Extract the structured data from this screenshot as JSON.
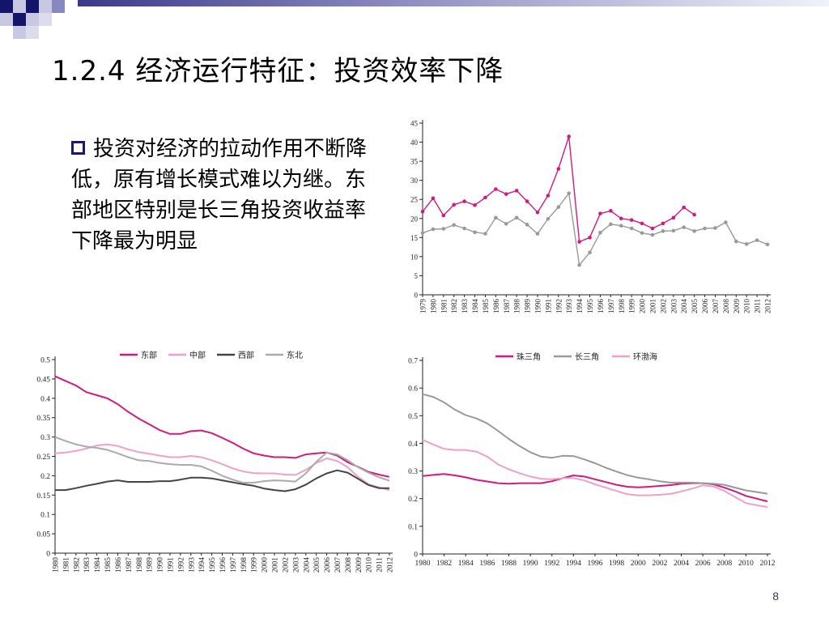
{
  "slide": {
    "title": "1.2.4 经济运行特征：投资效率下降",
    "bullet": "投资对经济的拉动作用不断降低，原有增长模式难以为继。东部地区特别是长三角投资收益率下降最为明显",
    "page_number": "8"
  },
  "colors": {
    "magenta": "#d4197e",
    "gray": "#999999",
    "pink": "#f0a0c8",
    "dark": "#444444",
    "lightgray": "#aaaaaa",
    "accent": "#1a1a6a"
  },
  "chart_data": [
    {
      "type": "line",
      "x": [
        1979,
        1980,
        1981,
        1982,
        1983,
        1984,
        1985,
        1986,
        1987,
        1988,
        1989,
        1990,
        1991,
        1992,
        1993,
        1994,
        1995,
        1996,
        1997,
        1998,
        1999,
        2000,
        2001,
        2002,
        2003,
        2004,
        2005,
        2006,
        2007,
        2008,
        2009,
        2010,
        2011,
        2012
      ],
      "ylim": [
        0,
        45
      ],
      "yticks": [
        0,
        5,
        10,
        15,
        20,
        25,
        30,
        35,
        40,
        45
      ],
      "series": [
        {
          "color": "#d4197e",
          "values": [
            21.8,
            25.3,
            20.8,
            23.6,
            24.5,
            23.5,
            25.5,
            27.7,
            26.4,
            27.3,
            24.5,
            21.6,
            26.0,
            33.0,
            41.5,
            13.9,
            15.0,
            21.3,
            22.0,
            20.0,
            19.6,
            18.7,
            17.4,
            18.7,
            20.2,
            22.9,
            21.0,
            null,
            null,
            null,
            null,
            null,
            null,
            null
          ]
        },
        {
          "color": "#999999",
          "values": [
            16.2,
            17.2,
            17.3,
            18.3,
            17.4,
            16.4,
            16.0,
            20.2,
            18.6,
            20.2,
            18.4,
            16.0,
            19.9,
            23.0,
            26.6,
            7.8,
            11.1,
            16.3,
            18.5,
            18.1,
            17.4,
            16.2,
            15.7,
            16.7,
            16.8,
            17.7,
            16.7,
            17.4,
            17.5,
            19.0,
            14.0,
            13.3,
            14.3,
            13.2
          ]
        }
      ]
    },
    {
      "type": "line",
      "x": [
        1980,
        1981,
        1982,
        1983,
        1984,
        1985,
        1986,
        1987,
        1988,
        1989,
        1990,
        1991,
        1992,
        1993,
        1994,
        1995,
        1996,
        1997,
        1998,
        1999,
        2000,
        2001,
        2002,
        2003,
        2004,
        2005,
        2006,
        2007,
        2008,
        2009,
        2010,
        2011,
        2012
      ],
      "ylim": [
        0,
        0.5
      ],
      "yticks": [
        "0",
        "0.05",
        "0.1",
        "0.15",
        "0.2",
        "0.25",
        "0.3",
        "0.35",
        "0.4",
        "0.45",
        "0.5"
      ],
      "legend": [
        "东部",
        "中部",
        "西部",
        "东北"
      ],
      "series": [
        {
          "name": "东部",
          "color": "#d4197e",
          "values": [
            0.457,
            0.445,
            0.433,
            0.416,
            0.408,
            0.4,
            0.385,
            0.365,
            0.348,
            0.333,
            0.318,
            0.308,
            0.308,
            0.315,
            0.317,
            0.31,
            0.298,
            0.285,
            0.27,
            0.258,
            0.252,
            0.248,
            0.248,
            0.246,
            0.255,
            0.258,
            0.26,
            0.252,
            0.235,
            0.223,
            0.21,
            0.203,
            0.197
          ]
        },
        {
          "name": "中部",
          "color": "#f0a0c8",
          "values": [
            0.258,
            0.26,
            0.264,
            0.27,
            0.278,
            0.281,
            0.277,
            0.268,
            0.261,
            0.257,
            0.252,
            0.248,
            0.248,
            0.251,
            0.248,
            0.24,
            0.23,
            0.219,
            0.211,
            0.207,
            0.206,
            0.206,
            0.203,
            0.202,
            0.215,
            0.233,
            0.245,
            0.238,
            0.222,
            0.197,
            0.178,
            0.17,
            0.163
          ]
        },
        {
          "name": "西部",
          "color": "#444444",
          "values": [
            0.163,
            0.163,
            0.168,
            0.174,
            0.179,
            0.185,
            0.188,
            0.184,
            0.184,
            0.184,
            0.186,
            0.186,
            0.19,
            0.195,
            0.195,
            0.193,
            0.188,
            0.183,
            0.178,
            0.174,
            0.167,
            0.163,
            0.16,
            0.165,
            0.177,
            0.193,
            0.206,
            0.214,
            0.208,
            0.192,
            0.176,
            0.168,
            0.168
          ]
        },
        {
          "name": "东北",
          "color": "#aaaaaa",
          "values": [
            0.3,
            0.29,
            0.281,
            0.275,
            0.272,
            0.267,
            0.258,
            0.248,
            0.24,
            0.238,
            0.233,
            0.23,
            0.228,
            0.228,
            0.224,
            0.213,
            0.2,
            0.19,
            0.182,
            0.182,
            0.186,
            0.188,
            0.187,
            0.185,
            0.206,
            0.236,
            0.26,
            0.255,
            0.24,
            0.222,
            0.208,
            0.196,
            0.187
          ]
        }
      ]
    },
    {
      "type": "line",
      "x": [
        1980,
        1981,
        1982,
        1983,
        1984,
        1985,
        1986,
        1987,
        1988,
        1989,
        1990,
        1991,
        1992,
        1993,
        1994,
        1995,
        1996,
        1997,
        1998,
        1999,
        2000,
        2001,
        2002,
        2003,
        2004,
        2005,
        2006,
        2007,
        2008,
        2009,
        2010,
        2011,
        2012
      ],
      "xticks": [
        1980,
        1982,
        1984,
        1986,
        1988,
        1990,
        1992,
        1994,
        1996,
        1998,
        2000,
        2002,
        2004,
        2006,
        2008,
        2010,
        2012
      ],
      "ylim": [
        0,
        0.7
      ],
      "yticks": [
        "0",
        "0.1",
        "0.2",
        "0.3",
        "0.4",
        "0.5",
        "0.6",
        "0.7"
      ],
      "legend": [
        "珠三角",
        "长三角",
        "环渤海"
      ],
      "series": [
        {
          "name": "珠三角",
          "color": "#d4197e",
          "values": [
            0.282,
            0.286,
            0.289,
            0.284,
            0.277,
            0.268,
            0.262,
            0.256,
            0.254,
            0.256,
            0.256,
            0.256,
            0.263,
            0.274,
            0.284,
            0.28,
            0.27,
            0.26,
            0.25,
            0.243,
            0.241,
            0.243,
            0.246,
            0.249,
            0.254,
            0.256,
            0.256,
            0.252,
            0.24,
            0.226,
            0.21,
            0.2,
            0.19
          ]
        },
        {
          "name": "长三角",
          "color": "#999999",
          "values": [
            0.578,
            0.568,
            0.548,
            0.522,
            0.502,
            0.49,
            0.472,
            0.445,
            0.416,
            0.39,
            0.368,
            0.352,
            0.348,
            0.355,
            0.354,
            0.342,
            0.328,
            0.312,
            0.298,
            0.285,
            0.276,
            0.27,
            0.263,
            0.258,
            0.258,
            0.258,
            0.256,
            0.254,
            0.25,
            0.24,
            0.23,
            0.224,
            0.218
          ]
        },
        {
          "name": "环渤海",
          "color": "#f0a0c8",
          "values": [
            0.413,
            0.396,
            0.38,
            0.376,
            0.376,
            0.37,
            0.352,
            0.324,
            0.306,
            0.292,
            0.28,
            0.272,
            0.27,
            0.274,
            0.274,
            0.266,
            0.252,
            0.24,
            0.228,
            0.216,
            0.212,
            0.212,
            0.214,
            0.217,
            0.226,
            0.236,
            0.248,
            0.244,
            0.228,
            0.206,
            0.184,
            0.176,
            0.17
          ]
        }
      ]
    }
  ]
}
